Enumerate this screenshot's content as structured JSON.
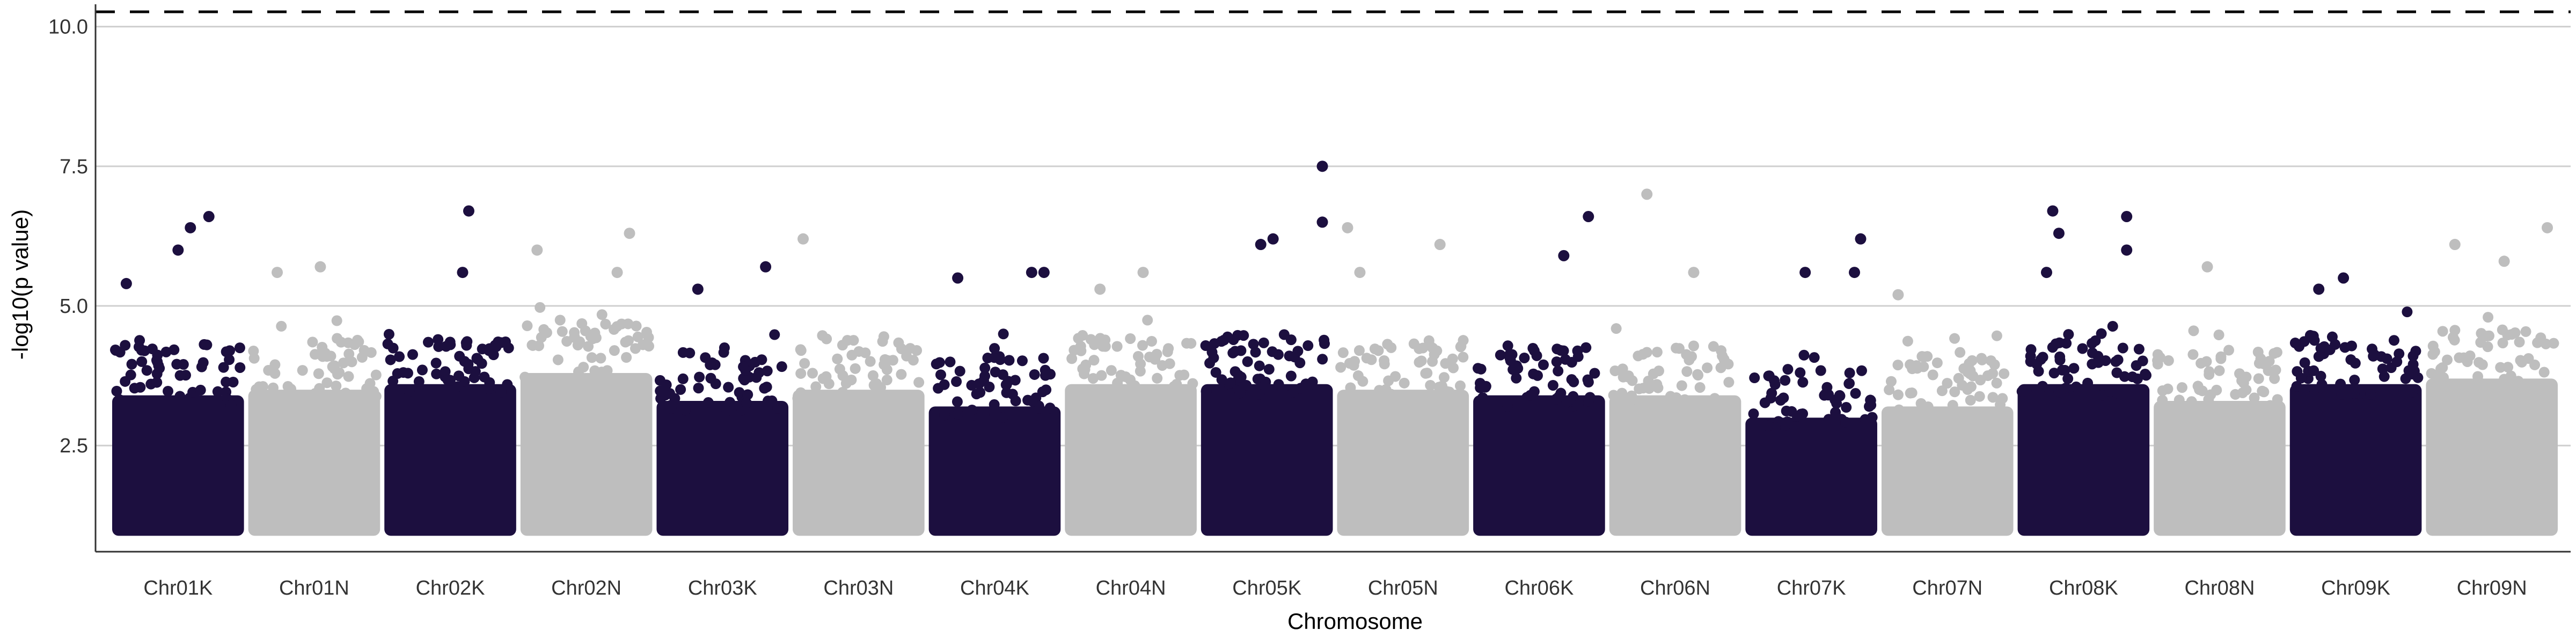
{
  "chart_data": {
    "type": "scatter",
    "title": "",
    "xlabel": "Chromosome",
    "ylabel": "-log10(p value)",
    "ylim": [
      0.6,
      10.4
    ],
    "y_ticks": [
      {
        "value": 2.5,
        "label": "2.5"
      },
      {
        "value": 5.0,
        "label": "5.0"
      },
      {
        "value": 7.5,
        "label": "7.5"
      },
      {
        "value": 10.0,
        "label": "10.0"
      }
    ],
    "grid": "horizontal",
    "threshold_lines": [
      {
        "value": 10.4,
        "style": "dashed"
      }
    ],
    "colors": {
      "dark": "#1c0f3f",
      "light": "#bebebe",
      "grid": "#cfcfcf",
      "axis": "#333333"
    },
    "categories": [
      "Chr01K",
      "Chr01N",
      "Chr02K",
      "Chr02N",
      "Chr03K",
      "Chr03N",
      "Chr04K",
      "Chr04N",
      "Chr05K",
      "Chr05N",
      "Chr06K",
      "Chr06N",
      "Chr07K",
      "Chr07N",
      "Chr08K",
      "Chr08N",
      "Chr09K",
      "Chr09N"
    ],
    "category_colors": [
      "dark",
      "light",
      "dark",
      "light",
      "dark",
      "light",
      "dark",
      "light",
      "dark",
      "light",
      "dark",
      "light",
      "dark",
      "light",
      "dark",
      "light",
      "dark",
      "light"
    ],
    "baseline_min": 1.0,
    "dense_upper": [
      3.8,
      3.9,
      4.0,
      4.2,
      3.7,
      3.9,
      3.6,
      4.0,
      4.0,
      3.9,
      3.8,
      3.8,
      3.4,
      3.6,
      4.0,
      3.7,
      4.0,
      4.1
    ],
    "peaks": [
      {
        "chr": "Chr01K",
        "pos": 0.75,
        "value": 6.6
      },
      {
        "chr": "Chr01K",
        "pos": 0.6,
        "value": 6.4
      },
      {
        "chr": "Chr01K",
        "pos": 0.5,
        "value": 6.0
      },
      {
        "chr": "Chr01K",
        "pos": 0.08,
        "value": 5.4
      },
      {
        "chr": "Chr01N",
        "pos": 0.55,
        "value": 5.7
      },
      {
        "chr": "Chr01N",
        "pos": 0.2,
        "value": 5.6
      },
      {
        "chr": "Chr02K",
        "pos": 0.65,
        "value": 6.7
      },
      {
        "chr": "Chr02K",
        "pos": 0.6,
        "value": 5.6
      },
      {
        "chr": "Chr02N",
        "pos": 0.1,
        "value": 6.0
      },
      {
        "chr": "Chr02N",
        "pos": 0.85,
        "value": 6.3
      },
      {
        "chr": "Chr02N",
        "pos": 0.75,
        "value": 5.6
      },
      {
        "chr": "Chr03K",
        "pos": 0.85,
        "value": 5.7
      },
      {
        "chr": "Chr03K",
        "pos": 0.3,
        "value": 5.3
      },
      {
        "chr": "Chr03N",
        "pos": 0.05,
        "value": 6.2
      },
      {
        "chr": "Chr04K",
        "pos": 0.2,
        "value": 5.5
      },
      {
        "chr": "Chr04K",
        "pos": 0.8,
        "value": 5.6
      },
      {
        "chr": "Chr04K",
        "pos": 0.9,
        "value": 5.6
      },
      {
        "chr": "Chr04N",
        "pos": 0.25,
        "value": 5.3
      },
      {
        "chr": "Chr04N",
        "pos": 0.6,
        "value": 5.6
      },
      {
        "chr": "Chr05K",
        "pos": 0.95,
        "value": 7.5
      },
      {
        "chr": "Chr05K",
        "pos": 0.95,
        "value": 6.5
      },
      {
        "chr": "Chr05K",
        "pos": 0.45,
        "value": 6.1
      },
      {
        "chr": "Chr05K",
        "pos": 0.55,
        "value": 6.2
      },
      {
        "chr": "Chr05N",
        "pos": 0.05,
        "value": 6.4
      },
      {
        "chr": "Chr05N",
        "pos": 0.15,
        "value": 5.6
      },
      {
        "chr": "Chr05N",
        "pos": 0.8,
        "value": 6.1
      },
      {
        "chr": "Chr06K",
        "pos": 0.7,
        "value": 5.9
      },
      {
        "chr": "Chr06K",
        "pos": 0.9,
        "value": 6.6
      },
      {
        "chr": "Chr06N",
        "pos": 0.27,
        "value": 7.0
      },
      {
        "chr": "Chr06N",
        "pos": 0.65,
        "value": 5.6
      },
      {
        "chr": "Chr07K",
        "pos": 0.45,
        "value": 5.6
      },
      {
        "chr": "Chr07K",
        "pos": 0.9,
        "value": 6.2
      },
      {
        "chr": "Chr07K",
        "pos": 0.85,
        "value": 5.6
      },
      {
        "chr": "Chr07N",
        "pos": 0.1,
        "value": 5.2
      },
      {
        "chr": "Chr08K",
        "pos": 0.25,
        "value": 6.7
      },
      {
        "chr": "Chr08K",
        "pos": 0.3,
        "value": 6.3
      },
      {
        "chr": "Chr08K",
        "pos": 0.85,
        "value": 6.6
      },
      {
        "chr": "Chr08K",
        "pos": 0.85,
        "value": 6.0
      },
      {
        "chr": "Chr08K",
        "pos": 0.2,
        "value": 5.6
      },
      {
        "chr": "Chr08N",
        "pos": 0.4,
        "value": 5.7
      },
      {
        "chr": "Chr09K",
        "pos": 0.4,
        "value": 5.5
      },
      {
        "chr": "Chr09K",
        "pos": 0.2,
        "value": 5.3
      },
      {
        "chr": "Chr09N",
        "pos": 0.95,
        "value": 6.4
      },
      {
        "chr": "Chr09N",
        "pos": 0.6,
        "value": 5.8
      },
      {
        "chr": "Chr09N",
        "pos": 0.2,
        "value": 6.1
      }
    ]
  }
}
